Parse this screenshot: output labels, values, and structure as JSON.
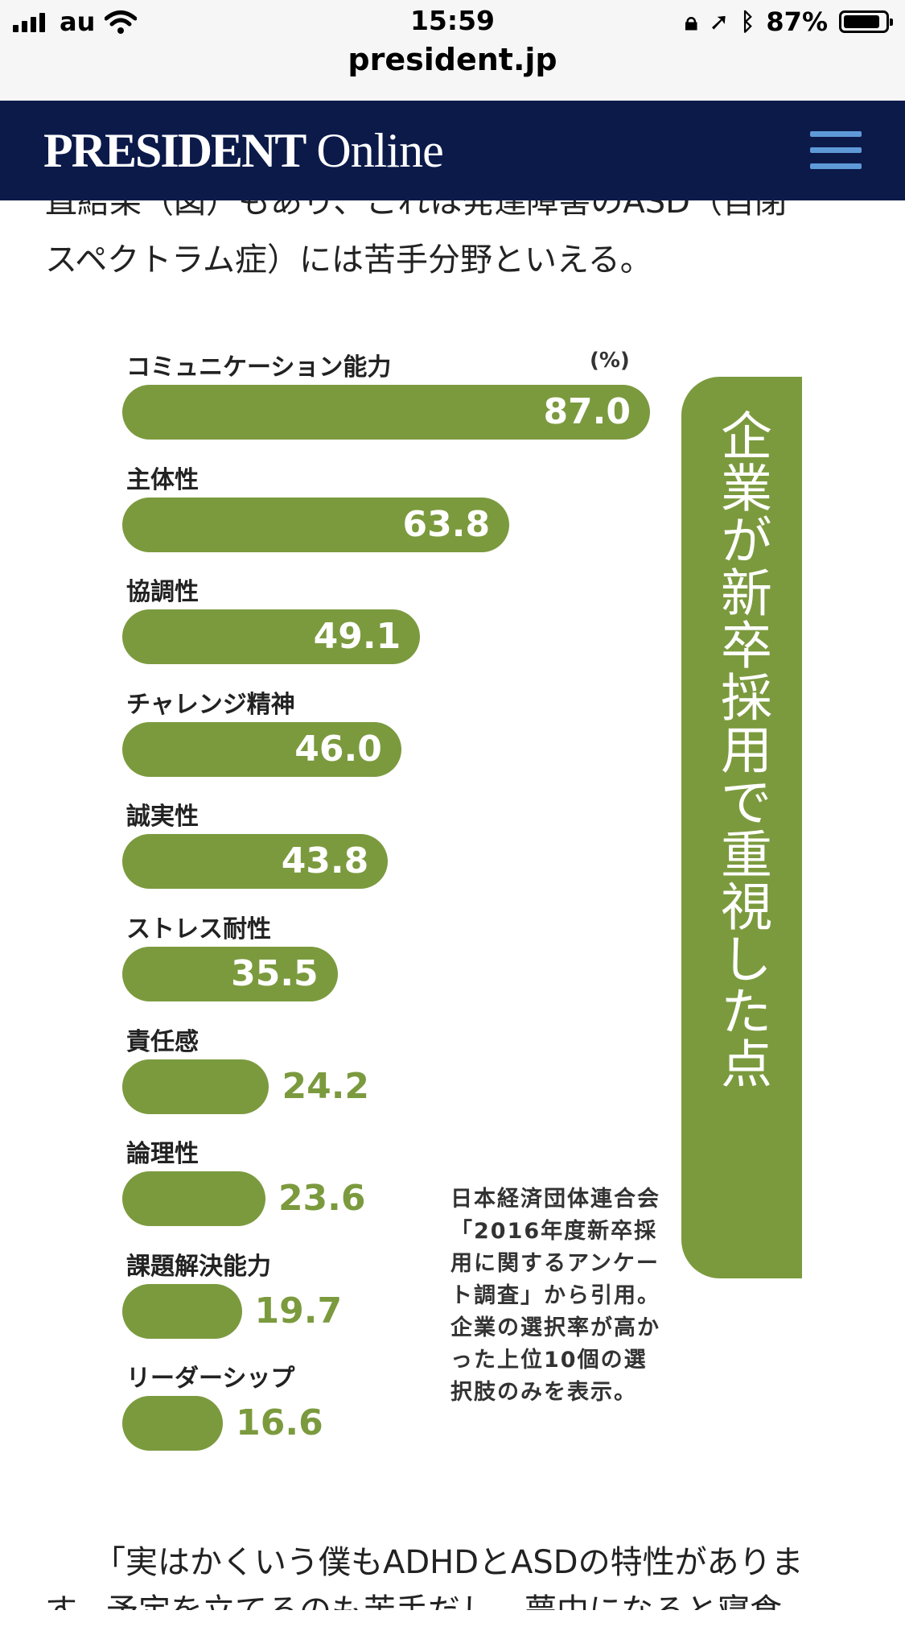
{
  "status_bar": {
    "carrier": "au",
    "time": "15:59",
    "battery_percent": "87%",
    "battery_level": 0.87
  },
  "browser": {
    "url": "president.jp"
  },
  "site": {
    "logo_bold": "PRESIDENT",
    "logo_rest": " Online"
  },
  "article": {
    "cut_top_line": "直結果（図）もあり、これは発達障害のASD（自閉",
    "para1": "スペクトラム症）には苦手分野といえる。",
    "para2": "「実はかくいう僕もADHDとASDの特性がありま",
    "cut_bottom_line": "す。予定を立てるのも苦手だし、夢中になると寝食"
  },
  "chart_data": {
    "type": "bar",
    "title": "企業が新卒採用で重視した点",
    "unit": "(%)",
    "categories": [
      "コミュニケーション能力",
      "主体性",
      "協調性",
      "チャレンジ精神",
      "誠実性",
      "ストレス耐性",
      "責任感",
      "論理性",
      "課題解決能力",
      "リーダーシップ"
    ],
    "values": [
      87.0,
      63.8,
      49.1,
      46.0,
      43.8,
      35.5,
      24.2,
      23.6,
      19.7,
      16.6
    ],
    "value_labels": [
      "87.0",
      "63.8",
      "49.1",
      "46.0",
      "43.8",
      "35.5",
      "24.2",
      "23.6",
      "19.7",
      "16.6"
    ],
    "source_note": "日本経済団体連合会「2016年度新卒採用に関するアンケート調査」から引用。企業の選択率が高かった上位10個の選択肢のみを表示。",
    "bar_color": "#7b9a3e",
    "legend": false,
    "grid": false
  },
  "colors": {
    "header_bg": "#0c1a4a",
    "menu_icon": "#5f9ad8",
    "bar": "#7b9a3e"
  }
}
